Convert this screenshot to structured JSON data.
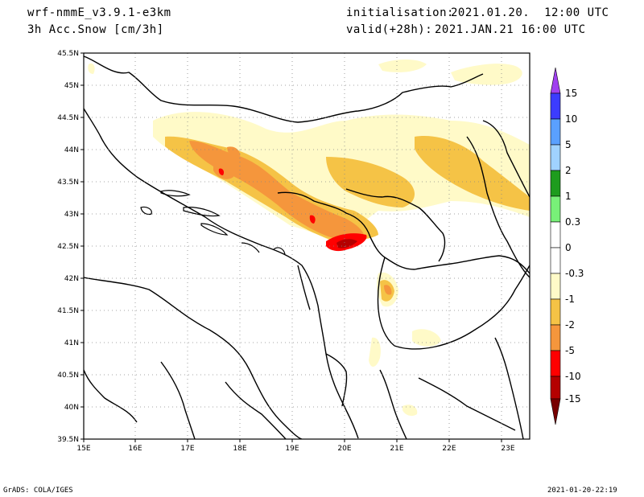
{
  "header": {
    "model": "wrf-nmmE_v3.9.1-e3km",
    "variable": "3h Acc.Snow [cm/3h]",
    "init_label": "initialisation:",
    "init_value": "2021.01.20.  12:00 UTC",
    "valid_label": "valid(+28h):",
    "valid_value": "2021.JAN.21 16:00 UTC"
  },
  "map": {
    "lon_labels": [
      "15E",
      "16E",
      "17E",
      "18E",
      "19E",
      "20E",
      "21E",
      "22E",
      "23E"
    ],
    "lat_labels": [
      "45.5N",
      "45N",
      "44.5N",
      "44N",
      "43.5N",
      "43N",
      "42.5N",
      "42N",
      "41.5N",
      "41N",
      "40.5N",
      "40N",
      "39.5N"
    ]
  },
  "colorbar": {
    "labels": [
      "15",
      "10",
      "5",
      "2",
      "1",
      "0.3",
      "0",
      "-0.3",
      "-1",
      "-2",
      "-5",
      "-10",
      "-15"
    ],
    "colors": {
      "top_arrow": "#a040f0",
      "c15_10": "#3c3cff",
      "c10_5": "#5aa0ff",
      "c5_2": "#a0d2ff",
      "c2_1": "#1e9c1e",
      "c1_03": "#78f078",
      "c03_0": "#ffffff",
      "c0_m03": "#ffffff",
      "cm03_m1": "#fffac8",
      "cm1_m2": "#f5c346",
      "cm2_m5": "#f5963c",
      "cm5_m10": "#ff0000",
      "cm10_m15": "#b40000",
      "bottom_arrow": "#780000"
    }
  },
  "footer": {
    "credit": "GrADS: COLA/IGES",
    "timestamp": "2021-01-20-22:19"
  }
}
